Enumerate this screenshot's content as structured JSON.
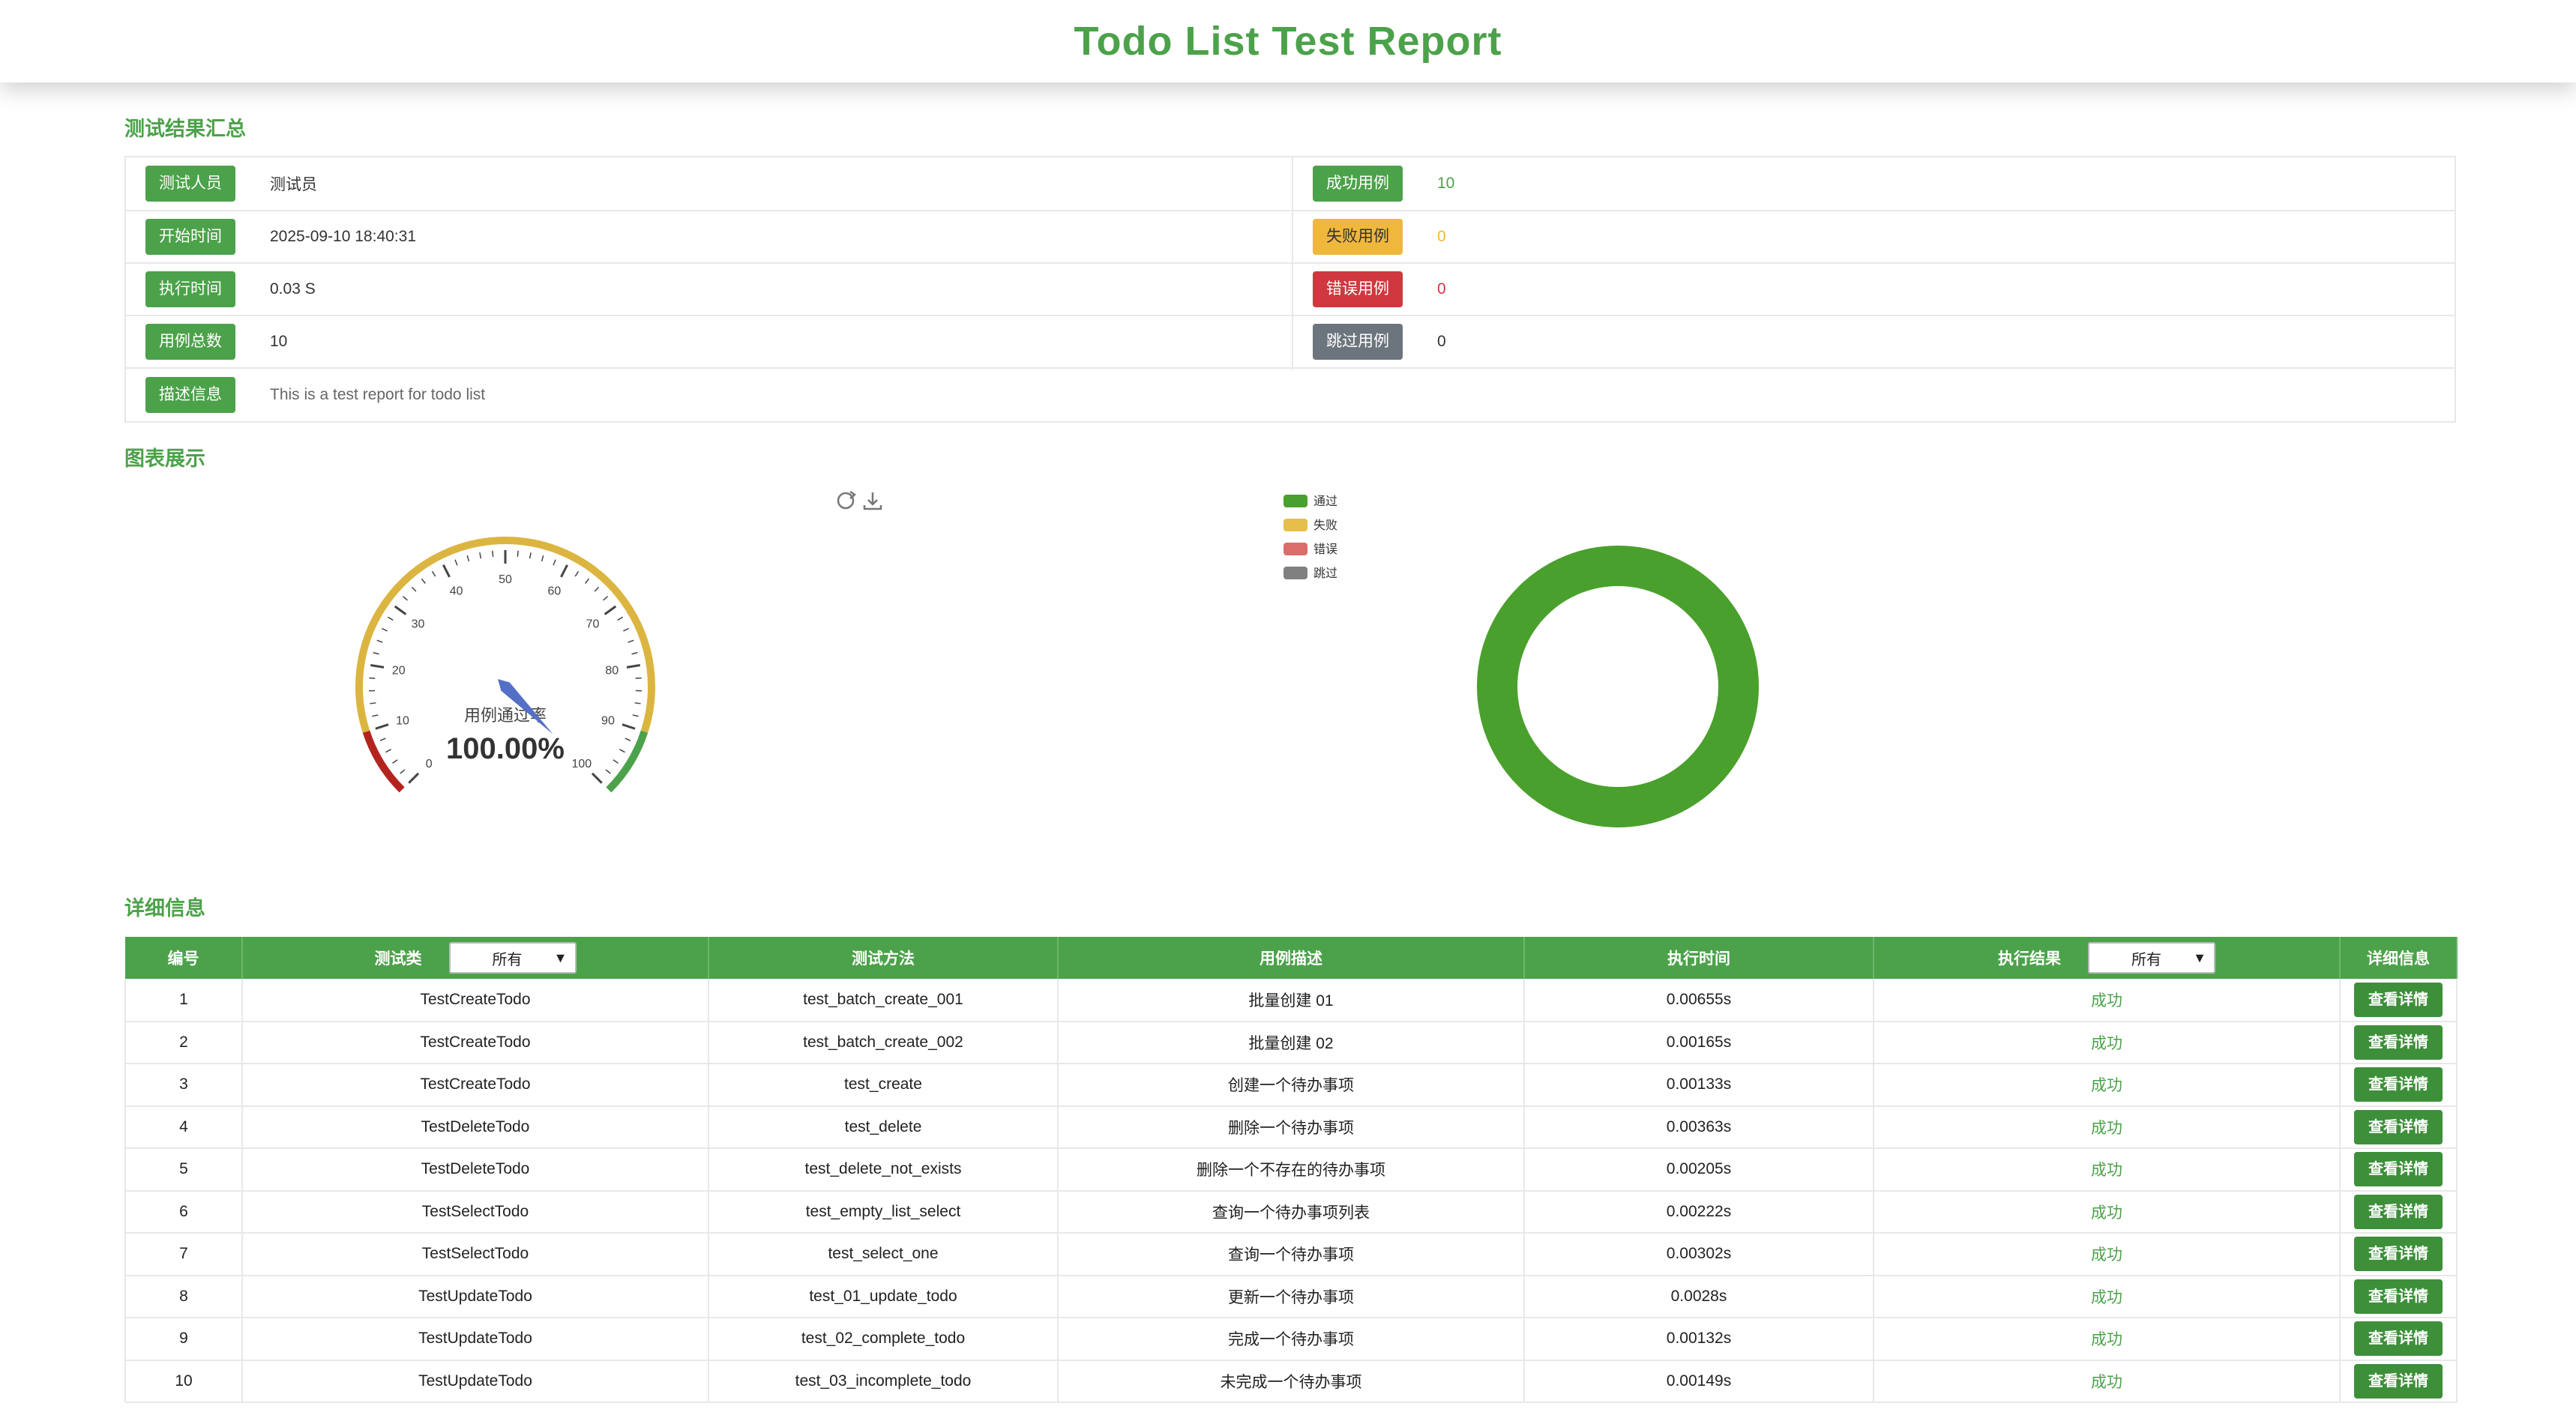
{
  "header": {
    "title": "Todo List Test Report"
  },
  "summary": {
    "title": "测试结果汇总",
    "left": [
      {
        "label": "测试人员",
        "value": "测试员"
      },
      {
        "label": "开始时间",
        "value": "2025-09-10 18:40:31"
      },
      {
        "label": "执行时间",
        "value": "0.03 S"
      },
      {
        "label": "用例总数",
        "value": "10"
      }
    ],
    "right": [
      {
        "label": "成功用例",
        "value": "10",
        "color": "#4ca24a"
      },
      {
        "label": "失败用例",
        "value": "0",
        "color": "#f0b73d"
      },
      {
        "label": "错误用例",
        "value": "0",
        "color": "#d1373e"
      },
      {
        "label": "跳过用例",
        "value": "0",
        "color": "#333333"
      }
    ],
    "description": {
      "label": "描述信息",
      "value": "This is a test report for todo list"
    }
  },
  "charts": {
    "title": "图表展示",
    "toolbox": [
      "refresh-icon",
      "download-icon"
    ]
  },
  "chart_data": [
    {
      "type": "gauge",
      "title": "用例通过率",
      "value": 100.0,
      "value_label": "100.00%",
      "range": [
        0,
        100
      ],
      "ticks": [
        "0",
        "10",
        "20",
        "30",
        "40",
        "50",
        "60",
        "70",
        "80",
        "90",
        "100"
      ],
      "bands": [
        {
          "to": 10,
          "color": "#b3241f"
        },
        {
          "to": 90,
          "color": "#dbb540"
        },
        {
          "to": 100,
          "color": "#4ca24a"
        }
      ]
    },
    {
      "type": "pie",
      "legend_position": "top-left",
      "series": [
        {
          "name": "通过",
          "value": 10,
          "color": "#4aa02c"
        },
        {
          "name": "失败",
          "value": 0,
          "color": "#e6be4a"
        },
        {
          "name": "错误",
          "value": 0,
          "color": "#dc6c6c"
        },
        {
          "name": "跳过",
          "value": 0,
          "color": "#808080"
        }
      ]
    }
  ],
  "details": {
    "title": "详细信息",
    "columns": {
      "id": "编号",
      "class": "测试类",
      "method": "测试方法",
      "desc": "用例描述",
      "time": "执行时间",
      "result": "执行结果",
      "detail": "详细信息"
    },
    "class_filter": "所有",
    "result_filter": "所有",
    "detail_button": "查看详情",
    "rows": [
      {
        "id": "1",
        "class": "TestCreateTodo",
        "method": "test_batch_create_001",
        "desc": "批量创建 01",
        "time": "0.00655s",
        "result": "成功"
      },
      {
        "id": "2",
        "class": "TestCreateTodo",
        "method": "test_batch_create_002",
        "desc": "批量创建 02",
        "time": "0.00165s",
        "result": "成功"
      },
      {
        "id": "3",
        "class": "TestCreateTodo",
        "method": "test_create",
        "desc": "创建一个待办事项",
        "time": "0.00133s",
        "result": "成功"
      },
      {
        "id": "4",
        "class": "TestDeleteTodo",
        "method": "test_delete",
        "desc": "删除一个待办事项",
        "time": "0.00363s",
        "result": "成功"
      },
      {
        "id": "5",
        "class": "TestDeleteTodo",
        "method": "test_delete_not_exists",
        "desc": "删除一个不存在的待办事项",
        "time": "0.00205s",
        "result": "成功"
      },
      {
        "id": "6",
        "class": "TestSelectTodo",
        "method": "test_empty_list_select",
        "desc": "查询一个待办事项列表",
        "time": "0.00222s",
        "result": "成功"
      },
      {
        "id": "7",
        "class": "TestSelectTodo",
        "method": "test_select_one",
        "desc": "查询一个待办事项",
        "time": "0.00302s",
        "result": "成功"
      },
      {
        "id": "8",
        "class": "TestUpdateTodo",
        "method": "test_01_update_todo",
        "desc": "更新一个待办事项",
        "time": "0.0028s",
        "result": "成功"
      },
      {
        "id": "9",
        "class": "TestUpdateTodo",
        "method": "test_02_complete_todo",
        "desc": "完成一个待办事项",
        "time": "0.00132s",
        "result": "成功"
      },
      {
        "id": "10",
        "class": "TestUpdateTodo",
        "method": "test_03_incomplete_todo",
        "desc": "未完成一个待办事项",
        "time": "0.00149s",
        "result": "成功"
      }
    ]
  }
}
